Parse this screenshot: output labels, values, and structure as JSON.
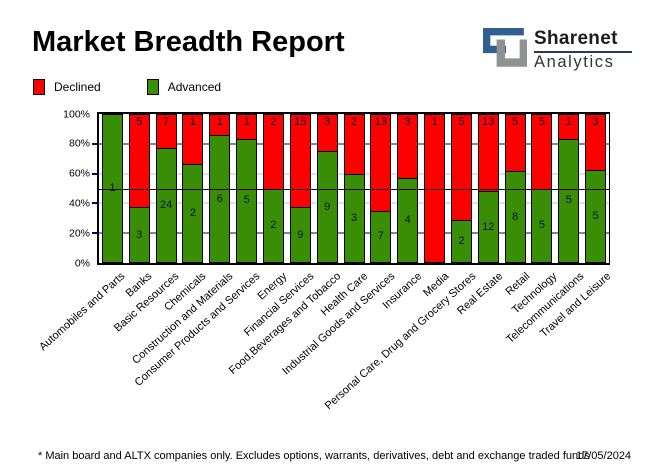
{
  "title": "Market Breadth Report",
  "logo": {
    "name": "Sharenet",
    "division": "Analytics",
    "blue": "#2f608f",
    "gray": "#8f9193"
  },
  "footer": {
    "note": "* Main board and ALTX companies only. Excludes options, warrants, derivatives, debt and exchange traded funds",
    "date": "17/05/2024"
  },
  "chart_data": {
    "type": "bar",
    "stacked": true,
    "normalized": "percent-of-total",
    "title": "Market Breadth Report",
    "categories": [
      "Automobiles and Parts",
      "Banks",
      "Basic Resources",
      "Chemicals",
      "Construction and Materials",
      "Consumer Products and Services",
      "Energy",
      "Financial Services",
      "Food,Beverages and Tobacco",
      "Health Care",
      "Industrial Goods and Services",
      "Insurance",
      "Media",
      "Personal Care, Drug and Grocery Stores",
      "Real Estate",
      "Retail",
      "Technology",
      "Telecommunications",
      "Travel and Leisure"
    ],
    "series": [
      {
        "name": "Declined",
        "color": "#ff0000",
        "values": [
          0,
          5,
          7,
          1,
          1,
          1,
          2,
          15,
          3,
          2,
          13,
          3,
          1,
          5,
          13,
          5,
          5,
          1,
          3
        ]
      },
      {
        "name": "Advanced",
        "color": "#3a8e06",
        "values": [
          1,
          3,
          24,
          2,
          6,
          5,
          2,
          9,
          9,
          3,
          7,
          4,
          0,
          2,
          12,
          8,
          5,
          5,
          5
        ]
      }
    ],
    "y_axis": {
      "min": 0,
      "max": 100,
      "ticks": [
        "100%",
        "80%",
        "60%",
        "40%",
        "20%",
        "0%"
      ]
    },
    "gridlines": [
      {
        "percent": 80,
        "color": "#000066"
      },
      {
        "percent": 60,
        "color": "#c0c0c0"
      },
      {
        "percent": 40,
        "color": "#c0c0c0"
      },
      {
        "percent": 20,
        "color": "#000066"
      }
    ],
    "reference_line_percent": 50,
    "value_label_color": "#10103c",
    "legend_position": "top-left",
    "grid": true
  }
}
